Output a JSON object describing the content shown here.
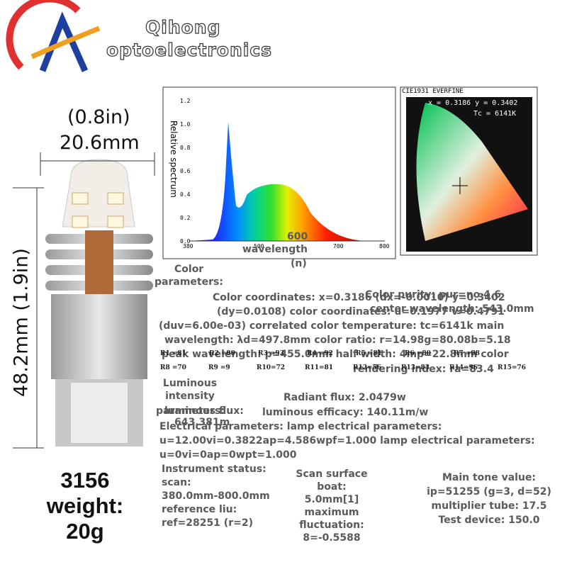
{
  "brand": {
    "line1": "Qihong",
    "line2": "optoelectronics"
  },
  "dimensions": {
    "width_in": "(0.8in)",
    "width_mm": "20.6mm",
    "height": "48.2mm (1.9in)"
  },
  "product": {
    "model": "3156",
    "weight_label": "weight:",
    "weight": "20g"
  },
  "spectrum": {
    "y_label": "Relative spectrum",
    "yticks": [
      "1.2",
      "1.0",
      "0.8",
      "0.6",
      "0.4",
      "0.2",
      "0.0"
    ],
    "xticks": [
      "380",
      "500",
      "600",
      "700",
      "800"
    ],
    "x_label": "wavelength",
    "x_unit": "(n)"
  },
  "cie": {
    "title": "CIE1931 EVERFINE",
    "coords": "x = 0.3186 y = 0.3402",
    "tc": "Tc = 6141K"
  },
  "color_params": {
    "heading1": "Color",
    "heading2": "parameters:",
    "lines": [
      "Color coordinates: x=0.3186 (dx=-0.0010) y=0.3402",
      "(dy=0.0108) color coordinates: u=0.1977 v=0.4791",
      "(duv=6.00e-03) correlated color temperature: tc=6141k main",
      "wavelength: λd=497.8mm color ratio: r=14.98g=80.08b=5.18",
      "peak wavelength: p=455.0mm half width: 4mp=22.8mm color",
      "rendering index: ra=83.4"
    ],
    "purity": "Color purity: pur=no 4.6",
    "center": "center wavelength: 543.0mm",
    "r_row1": [
      "R1 =81",
      "R2 =80",
      "R3 =93",
      "R4 =92",
      "R5 =81",
      "R6 =80",
      "R7 =88"
    ],
    "r_row2": [
      "R8 =70",
      "R9 =9",
      "R10=72",
      "R11=81",
      "R12=56",
      "R13=83",
      "R14=96",
      "R15=76"
    ]
  },
  "luminous": {
    "l1": "Luminous",
    "l2": "intensity",
    "l3": "parameters:",
    "l4": "luminous flux:",
    "l5": "643.381m",
    "radiant": "Radiant flux: 2.0479w",
    "efficacy": "luminous efficacy: 140.11m/w"
  },
  "electrical": {
    "l1": "Electrical parameters: lamp electrical parameters:",
    "l2": "u=12.00vi=0.3822ap=4.586wpf=1.000 lamp electrical parameters:",
    "l3": "u=0vi=0ap=0wpt=1.000"
  },
  "instrument": [
    "Instrument status:",
    "scan:",
    "380.0mm-800.0mm",
    "reference liu:",
    "ref=28251 (r=2)"
  ],
  "scan": [
    "Scan surface",
    "boat:",
    "5.0mm[1]",
    "maximum",
    "fluctuation:",
    "8=-0.5588"
  ],
  "tone": [
    "Main tone value:",
    "ip=51255 (g=3, d=52)",
    "multiplier tube: 17.5",
    "Test device: 150.0"
  ]
}
